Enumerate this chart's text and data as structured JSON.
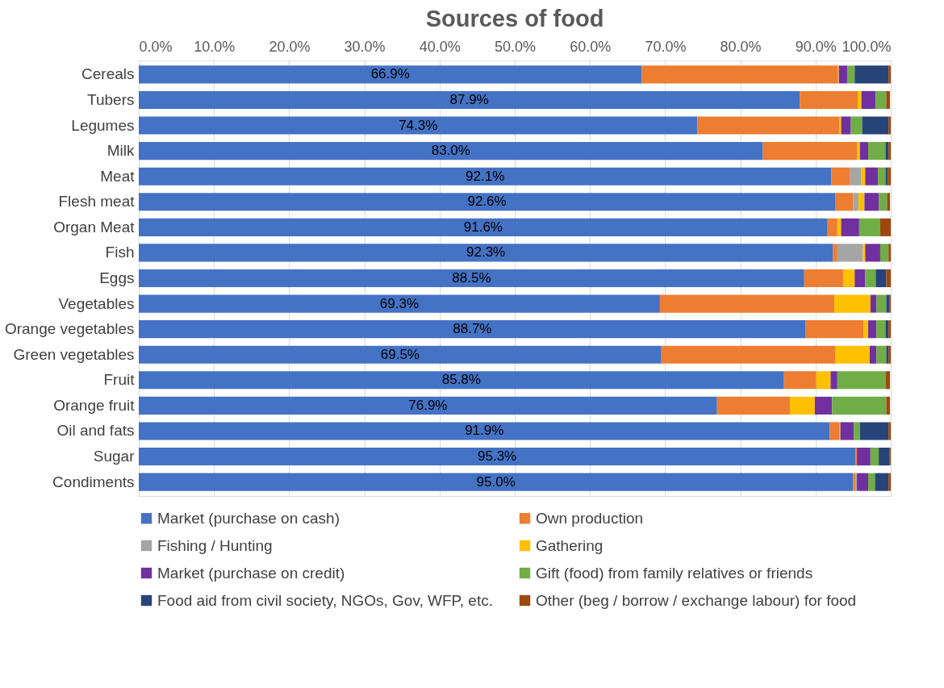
{
  "chart_data": {
    "type": "bar",
    "orientation": "horizontal",
    "stacked": true,
    "title": "Sources of food",
    "categories": [
      "Cereals",
      "Tubers",
      "Legumes",
      "Milk",
      "Meat",
      "Flesh meat",
      "Organ Meat",
      "Fish",
      "Eggs",
      "Vegetables",
      "Orange vegetables",
      "Green vegetables",
      "Fruit ",
      "Orange fruit ",
      "Oil and fats",
      "Sugar",
      "Condiments"
    ],
    "series": [
      {
        "name": "Market (purchase on cash)",
        "color": "#4472c4",
        "values": [
          66.9,
          87.9,
          74.3,
          83.0,
          92.1,
          92.6,
          91.6,
          92.3,
          88.5,
          69.3,
          88.7,
          69.5,
          85.8,
          76.9,
          91.9,
          95.3,
          95.0
        ],
        "value_labels": [
          "66.9%",
          "87.9%",
          "74.3%",
          "83.0%",
          "92.1%",
          "92.6%",
          "91.6%",
          "92.3%",
          "88.5%",
          "69.3%",
          "88.7%",
          "69.5%",
          "85.8%",
          "76.9%",
          "91.9%",
          "95.3%",
          "95.0%"
        ]
      },
      {
        "name": "Own production",
        "color": "#ed7d31",
        "values": [
          26.1,
          7.7,
          18.9,
          12.5,
          2.5,
          2.4,
          1.3,
          0.6,
          5.2,
          23.2,
          7.7,
          23.1,
          4.3,
          9.7,
          1.3,
          0.2,
          0.3
        ]
      },
      {
        "name": "Fishing / Hunting",
        "color": "#a5a5a5",
        "values": [
          0,
          0,
          0,
          0,
          1.5,
          0.7,
          0,
          3.4,
          0,
          0,
          0,
          0,
          0,
          0,
          0,
          0,
          0.2
        ]
      },
      {
        "name": "Gathering",
        "color": "#ffc000",
        "values": [
          0.1,
          0.5,
          0.2,
          0.4,
          0.5,
          0.8,
          0.5,
          0.3,
          1.5,
          4.8,
          0.6,
          4.6,
          1.9,
          3.3,
          0.1,
          0,
          0
        ]
      },
      {
        "name": "Market (purchase on credit)",
        "color": "#7030a0",
        "values": [
          1.1,
          1.9,
          1.3,
          1.1,
          1.7,
          1.9,
          2.4,
          2.0,
          1.4,
          0.8,
          1.1,
          0.9,
          0.9,
          2.3,
          1.8,
          1.8,
          1.5
        ]
      },
      {
        "name": "Gift (food) from family relatives or friends",
        "color": "#70ad47",
        "values": [
          1.0,
          1.4,
          1.5,
          2.3,
          1.0,
          1.1,
          2.8,
          1.1,
          1.4,
          1.3,
          1.2,
          1.3,
          6.4,
          7.2,
          0.8,
          1.1,
          0.9
        ]
      },
      {
        "name": "Food aid from civil society, NGOs, Gov, WFP, etc.",
        "color": "#264478",
        "values": [
          4.5,
          null,
          3.5,
          0.4,
          0.3,
          null,
          0,
          0,
          1.4,
          0.4,
          0.4,
          0.3,
          null,
          null,
          3.8,
          1.4,
          1.8
        ]
      },
      {
        "name": "Other (beg / borrow / exchange labour) for food",
        "color": "#9e480e",
        "values": [
          0.3,
          0.5,
          0.3,
          0.3,
          0.4,
          0.4,
          1.4,
          0.3,
          0.6,
          0.2,
          0.3,
          0.3,
          0.6,
          0.5,
          0.3,
          0.2,
          0.3
        ]
      }
    ],
    "xlim": [
      0,
      100
    ],
    "xticks": [
      {
        "value": 0,
        "label": "0.0%"
      },
      {
        "value": 10,
        "label": "10.0%"
      },
      {
        "value": 20,
        "label": "20.0%"
      },
      {
        "value": 30,
        "label": "30.0%"
      },
      {
        "value": 40,
        "label": "40.0%"
      },
      {
        "value": 50,
        "label": "50.0%"
      },
      {
        "value": 60,
        "label": "60.0%"
      },
      {
        "value": 70,
        "label": "70.0%"
      },
      {
        "value": 80,
        "label": "80.0%"
      },
      {
        "value": 90,
        "label": "90.0%"
      },
      {
        "value": 100,
        "label": "100.0%"
      }
    ],
    "grid": "x",
    "legend": "bottom"
  }
}
